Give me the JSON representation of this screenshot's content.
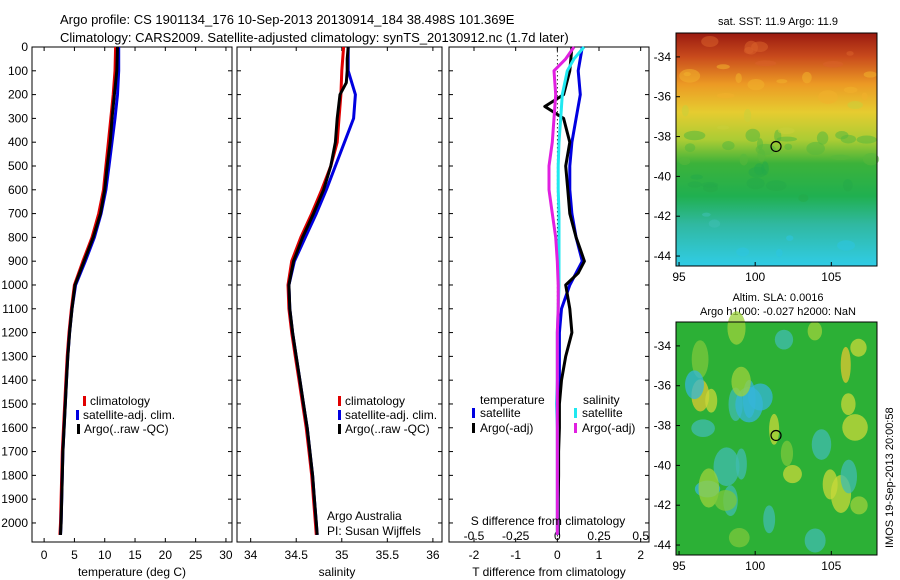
{
  "title_line1": "Argo profile: CS 1901134_176 10-Sep-2013 20130914_184 38.498S 101.369E",
  "title_line2": "Climatology: CARS2009. Satellite-adjusted climatology: synTS_20130912.nc (1.7d later)",
  "credit_line1": "Argo Australia",
  "credit_line2": "PI: Susan Wijffels",
  "side_stamp": "IMOS 19-Sep-2013 20:00:58",
  "colors": {
    "climatology": "#e00000",
    "satellite": "#0000e0",
    "argo": "#000000",
    "sal_satellite": "#20e8f0",
    "sal_argo": "#e020e0"
  },
  "chart_data": [
    {
      "type": "line",
      "name": "temperature-profile",
      "xlabel": "temperature (deg C)",
      "ylabel": "",
      "xlim": [
        -2,
        31
      ],
      "ylim": [
        2080,
        0
      ],
      "xticks": [
        0,
        5,
        10,
        15,
        20,
        25,
        30
      ],
      "yticks": [
        0,
        100,
        200,
        300,
        400,
        500,
        600,
        700,
        800,
        900,
        1000,
        1100,
        1200,
        1300,
        1400,
        1500,
        1600,
        1700,
        1800,
        1900,
        2000
      ],
      "legend": [
        "climatology",
        "satellite-adj. clim.",
        "Argo(..raw -QC)"
      ],
      "series": [
        {
          "name": "climatology",
          "color": "#e00000",
          "depth": [
            0,
            100,
            200,
            300,
            400,
            500,
            600,
            700,
            800,
            900,
            1000,
            1100,
            1200,
            1300,
            1400,
            1500,
            1600,
            1700,
            1800,
            1900,
            2000,
            2050
          ],
          "values": [
            11.8,
            11.7,
            11.4,
            11.0,
            10.6,
            10.2,
            9.8,
            9.0,
            7.9,
            6.4,
            5.0,
            4.5,
            4.1,
            3.8,
            3.6,
            3.4,
            3.2,
            3.0,
            2.9,
            2.8,
            2.7,
            2.6
          ]
        },
        {
          "name": "satellite-adj. clim.",
          "color": "#0000e0",
          "depth": [
            0,
            100,
            200,
            300,
            400,
            500,
            600,
            700,
            800,
            900,
            1000,
            1100,
            1200,
            1300,
            1400,
            1500,
            1600,
            1700,
            1800,
            1900,
            2000,
            2050
          ],
          "values": [
            12.3,
            12.3,
            12.1,
            11.7,
            11.2,
            10.7,
            10.2,
            9.4,
            8.3,
            6.8,
            5.2,
            4.6,
            4.2,
            3.9,
            3.7,
            3.5,
            3.3,
            3.1,
            3.0,
            2.9,
            2.8,
            2.7
          ]
        },
        {
          "name": "Argo(..raw -QC)",
          "color": "#000000",
          "depth": [
            0,
            100,
            200,
            300,
            400,
            500,
            600,
            700,
            800,
            900,
            1000,
            1100,
            1200,
            1300,
            1400,
            1500,
            1600,
            1700,
            1800,
            1900,
            2000,
            2050
          ],
          "values": [
            12.1,
            12.0,
            11.6,
            11.2,
            10.9,
            10.4,
            10.0,
            9.3,
            8.1,
            6.6,
            5.1,
            4.6,
            4.2,
            3.9,
            3.7,
            3.5,
            3.3,
            3.1,
            3.0,
            2.9,
            2.8,
            2.7
          ]
        }
      ]
    },
    {
      "type": "line",
      "name": "salinity-profile",
      "xlabel": "salinity",
      "ylabel": "",
      "xlim": [
        33.85,
        36.1
      ],
      "ylim": [
        2080,
        0
      ],
      "xticks": [
        34,
        34.5,
        35,
        35.5,
        36
      ],
      "legend": [
        "climatology",
        "satellite-adj. clim.",
        "Argo(..raw -QC)"
      ],
      "series": [
        {
          "name": "climatology",
          "color": "#e00000",
          "depth": [
            0,
            100,
            200,
            300,
            400,
            500,
            600,
            700,
            800,
            900,
            1000,
            1100,
            1200,
            1300,
            1400,
            1500,
            1600,
            1700,
            1800,
            1900,
            2000,
            2050
          ],
          "values": [
            35.02,
            35.0,
            34.99,
            34.97,
            34.95,
            34.88,
            34.78,
            34.67,
            34.55,
            34.45,
            34.41,
            34.42,
            34.45,
            34.49,
            34.53,
            34.57,
            34.61,
            34.64,
            34.67,
            34.69,
            34.71,
            34.72
          ]
        },
        {
          "name": "satellite-adj. clim.",
          "color": "#0000e0",
          "depth": [
            0,
            100,
            200,
            300,
            400,
            500,
            600,
            700,
            800,
            900,
            1000,
            1100,
            1200,
            1300,
            1400,
            1500,
            1600,
            1700,
            1800,
            1900,
            2000,
            2050
          ],
          "values": [
            35.07,
            35.07,
            35.15,
            35.13,
            35.03,
            34.93,
            34.83,
            34.72,
            34.6,
            34.48,
            34.42,
            34.43,
            34.46,
            34.5,
            34.54,
            34.58,
            34.62,
            34.65,
            34.68,
            34.7,
            34.72,
            34.73
          ]
        },
        {
          "name": "Argo(..raw -QC)",
          "color": "#000000",
          "depth": [
            0,
            50,
            100,
            150,
            200,
            300,
            400,
            500,
            600,
            700,
            800,
            900,
            1000,
            1100,
            1200,
            1300,
            1400,
            1500,
            1600,
            1700,
            1800,
            1900,
            2000,
            2050
          ],
          "values": [
            35.07,
            35.06,
            35.06,
            35.05,
            34.98,
            34.95,
            34.93,
            34.88,
            34.8,
            34.69,
            34.57,
            34.47,
            34.42,
            34.43,
            34.46,
            34.5,
            34.54,
            34.58,
            34.62,
            34.65,
            34.68,
            34.7,
            34.72,
            34.73
          ]
        }
      ]
    },
    {
      "type": "line",
      "name": "difference-profile",
      "xlabel": "T difference from climatology",
      "x2label": "S difference from climatology",
      "ylabel": "",
      "xlim": [
        -2.6,
        2.2
      ],
      "ylim": [
        2080,
        0
      ],
      "xticks": [
        -2,
        -1,
        0,
        1,
        2
      ],
      "x2ticks": [
        -0.5,
        -0.25,
        0,
        0.25,
        0.5
      ],
      "legend_title_t": "temperature",
      "legend_title_s": "salinity",
      "legend": [
        "satellite",
        "Argo(-adj)",
        "satellite",
        "Argo(-adj)"
      ],
      "series": [
        {
          "name": "temperature satellite",
          "color": "#0000e0",
          "depth": [
            0,
            100,
            200,
            300,
            400,
            500,
            600,
            700,
            800,
            900,
            1000,
            1100,
            1200,
            1300,
            1400,
            1500,
            1600,
            1700,
            1800,
            1900,
            2000,
            2050
          ],
          "values": [
            0.6,
            0.5,
            0.55,
            0.45,
            0.35,
            0.3,
            0.3,
            0.35,
            0.45,
            0.6,
            0.3,
            0.1,
            0.05,
            0.05,
            0.05,
            0.02,
            0.02,
            0.02,
            0.02,
            0.02,
            0.02,
            0.02
          ]
        },
        {
          "name": "temperature Argo(-adj)",
          "color": "#000000",
          "depth": [
            0,
            100,
            200,
            250,
            300,
            400,
            500,
            600,
            700,
            800,
            850,
            900,
            950,
            1000,
            1100,
            1200,
            1300,
            1400,
            1500,
            1600,
            1700,
            1800,
            1900,
            2000,
            2050
          ],
          "values": [
            0.35,
            0.3,
            0.15,
            -0.3,
            0.15,
            0.3,
            0.2,
            0.25,
            0.3,
            0.45,
            0.55,
            0.65,
            0.5,
            0.2,
            0.3,
            0.35,
            0.2,
            0.1,
            0.05,
            0.05,
            0.03,
            0.03,
            0.02,
            0.02,
            0.02
          ]
        },
        {
          "name": "salinity satellite",
          "color": "#20e8f0",
          "depth": [
            0,
            50,
            100,
            200,
            300,
            400,
            500,
            600,
            700,
            800,
            900,
            1000,
            1100,
            1200,
            1300,
            1400,
            1500,
            1600,
            1700,
            1800,
            1900,
            2000,
            2050
          ],
          "values": [
            0.16,
            0.1,
            0.06,
            0.03,
            0.02,
            0.01,
            0.005,
            0.005,
            0.01,
            0.01,
            0.01,
            0.01,
            0.005,
            0.0,
            0.0,
            0.0,
            -0.005,
            0.0,
            0.0,
            0.0,
            0.0,
            0.0,
            0.0
          ]
        },
        {
          "name": "salinity Argo(-adj)",
          "color": "#e020e0",
          "depth": [
            0,
            50,
            100,
            200,
            300,
            400,
            500,
            600,
            700,
            800,
            900,
            1000,
            1100,
            1200,
            1300,
            1400,
            1500,
            1600,
            1700,
            1800,
            1900,
            2000,
            2050
          ],
          "values": [
            0.1,
            0.05,
            -0.02,
            -0.01,
            -0.02,
            -0.03,
            -0.05,
            -0.05,
            -0.03,
            -0.01,
            0.0,
            0.005,
            0.005,
            0.0,
            0.0,
            0.0,
            0.0,
            0.0,
            0.0,
            0.0,
            0.0,
            0.0,
            0.0
          ]
        }
      ]
    },
    {
      "type": "heatmap",
      "name": "sst-map",
      "title": "sat. SST: 11.9 Argo: 11.9",
      "xlim": [
        94.8,
        108
      ],
      "ylim": [
        -44.5,
        -32.8
      ],
      "xticks": [
        95,
        100,
        105
      ],
      "yticks": [
        -34,
        -36,
        -38,
        -40,
        -42,
        -44
      ],
      "marker": {
        "lon": 101.369,
        "lat": -38.498
      }
    },
    {
      "type": "heatmap",
      "name": "sla-map",
      "title_line1": "Altim. SLA: 0.0016",
      "title_line2": "Argo h1000: -0.027 h2000: NaN",
      "xlim": [
        94.8,
        108
      ],
      "ylim": [
        -44.5,
        -32.8
      ],
      "xticks": [
        95,
        100,
        105
      ],
      "yticks": [
        -34,
        -36,
        -38,
        -40,
        -42,
        -44
      ],
      "marker": {
        "lon": 101.369,
        "lat": -38.498
      }
    }
  ]
}
